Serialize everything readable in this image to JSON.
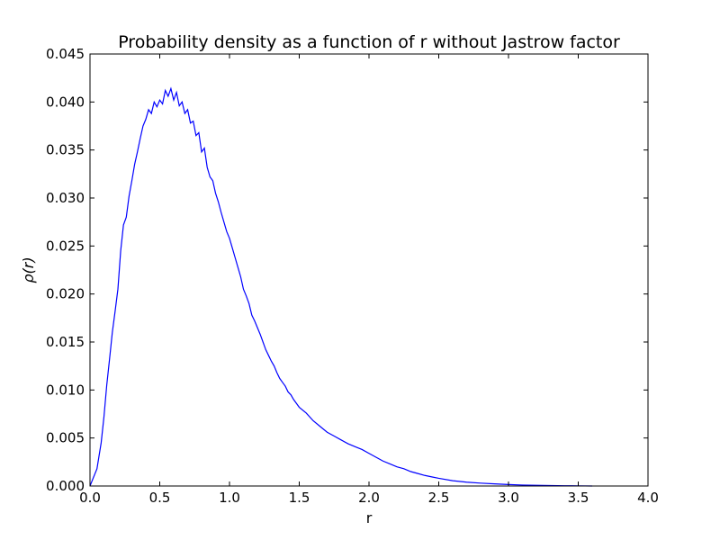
{
  "chart_data": {
    "type": "line",
    "title": "Probability density as a function of r without Jastrow factor",
    "xlabel": "r",
    "ylabel": "ρ(r)",
    "xlim": [
      0.0,
      4.0
    ],
    "ylim": [
      0.0,
      0.045
    ],
    "x_ticks": [
      "0.0",
      "0.5",
      "1.0",
      "1.5",
      "2.0",
      "2.5",
      "3.0",
      "3.5",
      "4.0"
    ],
    "y_ticks": [
      "0.000",
      "0.005",
      "0.010",
      "0.015",
      "0.020",
      "0.025",
      "0.030",
      "0.035",
      "0.040",
      "0.045"
    ],
    "grid": false,
    "legend": "none",
    "line_color": "#0000ff",
    "series": [
      {
        "x": [
          0.0,
          0.05,
          0.08,
          0.1,
          0.12,
          0.14,
          0.16,
          0.18,
          0.2,
          0.22,
          0.24,
          0.26,
          0.28,
          0.3,
          0.32,
          0.34,
          0.36,
          0.38,
          0.4,
          0.42,
          0.44,
          0.46,
          0.48,
          0.5,
          0.52,
          0.54,
          0.56,
          0.58,
          0.6,
          0.62,
          0.64,
          0.66,
          0.68,
          0.7,
          0.72,
          0.74,
          0.76,
          0.78,
          0.8,
          0.82,
          0.84,
          0.86,
          0.88,
          0.9,
          0.92,
          0.94,
          0.96,
          0.98,
          1.0,
          1.02,
          1.04,
          1.06,
          1.08,
          1.1,
          1.12,
          1.14,
          1.16,
          1.18,
          1.2,
          1.22,
          1.24,
          1.26,
          1.28,
          1.3,
          1.32,
          1.34,
          1.36,
          1.38,
          1.4,
          1.42,
          1.44,
          1.46,
          1.48,
          1.5,
          1.55,
          1.6,
          1.65,
          1.7,
          1.75,
          1.8,
          1.85,
          1.9,
          1.95,
          2.0,
          2.05,
          2.1,
          2.15,
          2.2,
          2.25,
          2.3,
          2.35,
          2.4,
          2.45,
          2.5,
          2.6,
          2.7,
          2.8,
          2.9,
          3.0,
          3.1,
          3.2,
          3.3,
          3.4,
          3.5,
          3.6
        ],
        "y": [
          0.0,
          0.0018,
          0.0045,
          0.0072,
          0.0105,
          0.0132,
          0.016,
          0.0182,
          0.0205,
          0.0245,
          0.0272,
          0.028,
          0.0302,
          0.0318,
          0.0335,
          0.0348,
          0.0362,
          0.0375,
          0.0382,
          0.0392,
          0.0388,
          0.04,
          0.0395,
          0.0402,
          0.0398,
          0.0412,
          0.0406,
          0.0414,
          0.0402,
          0.041,
          0.0396,
          0.04,
          0.0388,
          0.0392,
          0.0378,
          0.038,
          0.0365,
          0.0368,
          0.0348,
          0.0352,
          0.0332,
          0.0322,
          0.0318,
          0.0305,
          0.0296,
          0.0285,
          0.0275,
          0.0265,
          0.0258,
          0.0248,
          0.0238,
          0.0228,
          0.0218,
          0.0205,
          0.0198,
          0.019,
          0.0178,
          0.0172,
          0.0165,
          0.0158,
          0.015,
          0.0142,
          0.0136,
          0.013,
          0.0125,
          0.0118,
          0.0112,
          0.0108,
          0.0104,
          0.0098,
          0.0095,
          0.009,
          0.0086,
          0.0082,
          0.0076,
          0.0068,
          0.0062,
          0.0056,
          0.0052,
          0.0048,
          0.0044,
          0.0041,
          0.0038,
          0.0034,
          0.003,
          0.0026,
          0.0023,
          0.002,
          0.0018,
          0.0015,
          0.0013,
          0.0011,
          0.00095,
          0.0008,
          0.00055,
          0.0004,
          0.0003,
          0.00022,
          0.00015,
          0.0001,
          7e-05,
          5e-05,
          3e-05,
          2e-05,
          0.0
        ]
      }
    ]
  }
}
